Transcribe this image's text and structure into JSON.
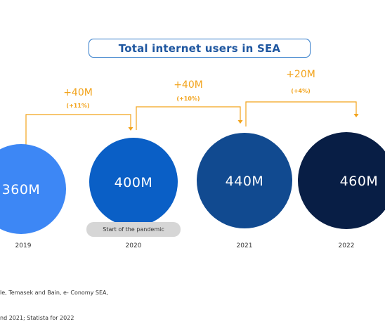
{
  "title": "Total internet users in SEA",
  "annotation": "Start of the pandemic",
  "source_lines": [
    "le, Temasek and Bain, e- Conomy SEA,",
    "nd 2021; Statista for 2022"
  ],
  "colors": {
    "title_border": "#2e79c9",
    "title_text": "#1f57a0",
    "growth": "#f2a31b",
    "bubbles": [
      "#3d87f5",
      "#0a5fc6",
      "#114a90",
      "#081e45"
    ]
  },
  "chart_data": {
    "type": "bubble",
    "title": "Total internet users in SEA",
    "categories": [
      "2019",
      "2020",
      "2021",
      "2022"
    ],
    "values": [
      360,
      400,
      440,
      460
    ],
    "value_labels": [
      "360M",
      "400M",
      "440M",
      "460M"
    ],
    "unit": "M",
    "growth": [
      {
        "from": "2019",
        "to": "2020",
        "label": "+40M",
        "pct": "(+11%)"
      },
      {
        "from": "2020",
        "to": "2021",
        "label": "+40M",
        "pct": "(+10%)"
      },
      {
        "from": "2021",
        "to": "2022",
        "label": "+20M",
        "pct": "(+4%)"
      }
    ]
  }
}
